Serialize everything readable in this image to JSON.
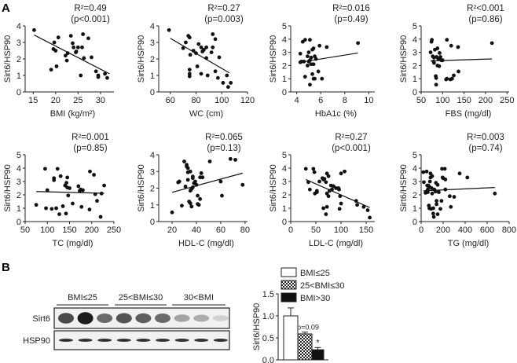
{
  "panel_labels": {
    "a": "A",
    "b": "B"
  },
  "chart_data": [
    {
      "type": "scatter",
      "title": "",
      "xlabel": "BMI (kg/m²)",
      "ylabel": "Sirt6/HSP90",
      "r2": "R²=0.49",
      "p": "(p<0.001)",
      "xlim": [
        13.2,
        33
      ],
      "ylim": [
        0,
        4
      ],
      "xticks": [
        15,
        20,
        25,
        30
      ],
      "yticks": [
        0,
        1,
        2,
        3,
        4
      ],
      "fit": [
        [
          15.2,
          3.45
        ],
        [
          32,
          1.1
        ]
      ],
      "points": [
        [
          15.2,
          3.75
        ],
        [
          19,
          1.35
        ],
        [
          19.5,
          2.6
        ],
        [
          19.7,
          3.0
        ],
        [
          20,
          2.5
        ],
        [
          20.2,
          1.55
        ],
        [
          20.6,
          3.3
        ],
        [
          22.2,
          2.2
        ],
        [
          22.5,
          1.9
        ],
        [
          22.7,
          2.35
        ],
        [
          23.4,
          3.4
        ],
        [
          23.8,
          2.95
        ],
        [
          24,
          2.7
        ],
        [
          24.5,
          2.4
        ],
        [
          24.6,
          2.45
        ],
        [
          25,
          2.7
        ],
        [
          25.6,
          1.0
        ],
        [
          25.9,
          2.7
        ],
        [
          26.1,
          3.5
        ],
        [
          26.3,
          2.05
        ],
        [
          27.3,
          3.25
        ],
        [
          28,
          2.1
        ],
        [
          29,
          1.25
        ],
        [
          29.5,
          1.0
        ],
        [
          29.5,
          0.9
        ],
        [
          31,
          1.1
        ],
        [
          31.5,
          0.85
        ]
      ]
    },
    {
      "type": "scatter",
      "xlabel": "WC (cm)",
      "ylabel": "Sirt6/HSP90",
      "r2": "R²=0.27",
      "p": "(p=0.003)",
      "xlim": [
        51,
        120
      ],
      "ylim": [
        0,
        4
      ],
      "xticks": [
        60,
        80,
        100,
        120
      ],
      "yticks": [
        0,
        1,
        2,
        3,
        4
      ],
      "fit": [
        [
          60,
          3.25
        ],
        [
          106,
          1.15
        ]
      ],
      "points": [
        [
          59,
          3.75
        ],
        [
          70,
          2.65
        ],
        [
          72,
          3.0
        ],
        [
          74,
          3.4
        ],
        [
          75,
          3.3
        ],
        [
          75,
          1.35
        ],
        [
          75,
          1.1
        ],
        [
          75,
          0.95
        ],
        [
          75.5,
          2.25
        ],
        [
          78,
          2.5
        ],
        [
          80,
          2.35
        ],
        [
          81,
          1.55
        ],
        [
          82,
          2.9
        ],
        [
          84,
          2.7
        ],
        [
          84,
          1.1
        ],
        [
          85,
          2.45
        ],
        [
          86,
          2.55
        ],
        [
          88,
          2.7
        ],
        [
          88,
          2.05
        ],
        [
          89,
          1.0
        ],
        [
          92,
          2.4
        ],
        [
          93,
          3.5
        ],
        [
          93,
          2.7
        ],
        [
          95,
          3.2
        ],
        [
          95,
          1.25
        ],
        [
          97,
          0.85
        ],
        [
          98,
          2.1
        ],
        [
          101,
          0.55
        ],
        [
          104,
          1.0
        ],
        [
          105,
          0.3
        ],
        [
          107,
          0.55
        ]
      ]
    },
    {
      "type": "scatter",
      "xlabel": "HbA1c (%)",
      "ylabel": "Sirt6/HSP90",
      "r2": "R²=0.016",
      "p": "(p=0.49)",
      "xlim": [
        3.5,
        10.5
      ],
      "ylim": [
        0,
        5
      ],
      "xticks": [
        4,
        6,
        8,
        10
      ],
      "yticks": [
        0,
        1,
        2,
        3,
        4,
        5
      ],
      "fit": [
        [
          4.3,
          2.25
        ],
        [
          9.1,
          2.95
        ]
      ],
      "points": [
        [
          4.3,
          2.9
        ],
        [
          4.3,
          2.25
        ],
        [
          4.4,
          2.3
        ],
        [
          4.5,
          3.8
        ],
        [
          4.6,
          2.3
        ],
        [
          4.7,
          3.95
        ],
        [
          4.7,
          1.15
        ],
        [
          4.9,
          2.7
        ],
        [
          4.9,
          2.0
        ],
        [
          5,
          3.0
        ],
        [
          5,
          2.3
        ],
        [
          5.1,
          3.95
        ],
        [
          5.1,
          2.4
        ],
        [
          5.1,
          0.55
        ],
        [
          5.2,
          2.6
        ],
        [
          5.2,
          2.1
        ],
        [
          5.3,
          3.2
        ],
        [
          5.3,
          1.35
        ],
        [
          5.4,
          3.3
        ],
        [
          5.4,
          2.1
        ],
        [
          5.4,
          1.0
        ],
        [
          5.5,
          2.7
        ],
        [
          5.5,
          1.0
        ],
        [
          5.6,
          2.5
        ],
        [
          5.8,
          1.55
        ],
        [
          5.9,
          3.5
        ],
        [
          6.1,
          1.0
        ],
        [
          6.5,
          3.4
        ],
        [
          9.1,
          3.7
        ]
      ]
    },
    {
      "type": "scatter",
      "xlabel": "FBS (mg/dl)",
      "ylabel": "Sirt6/HSP90",
      "r2": "R²<0.001",
      "p": "(p=0.86)",
      "xlim": [
        50,
        255
      ],
      "ylim": [
        0,
        5
      ],
      "xticks": [
        50,
        100,
        150,
        200,
        250
      ],
      "yticks": [
        0,
        1,
        2,
        3,
        4,
        5
      ],
      "fit": [
        [
          72,
          2.35
        ],
        [
          215,
          2.5
        ]
      ],
      "points": [
        [
          72,
          3.0
        ],
        [
          74,
          3.8
        ],
        [
          75,
          3.95
        ],
        [
          77,
          2.7
        ],
        [
          79,
          2.3
        ],
        [
          80,
          2.6
        ],
        [
          80,
          2.2
        ],
        [
          82,
          3.2
        ],
        [
          84,
          1.2
        ],
        [
          85,
          1.05
        ],
        [
          85,
          0.55
        ],
        [
          86,
          2.65
        ],
        [
          88,
          3.3
        ],
        [
          88,
          2.0
        ],
        [
          90,
          2.5
        ],
        [
          92,
          1.95
        ],
        [
          93,
          2.95
        ],
        [
          95,
          2.65
        ],
        [
          97,
          2.4
        ],
        [
          100,
          2.4
        ],
        [
          108,
          0.95
        ],
        [
          110,
          1.0
        ],
        [
          110,
          3.95
        ],
        [
          118,
          0.95
        ],
        [
          120,
          3.5
        ],
        [
          122,
          1.0
        ],
        [
          126,
          1.25
        ],
        [
          136,
          3.4
        ],
        [
          137,
          1.55
        ],
        [
          215,
          3.7
        ]
      ]
    },
    {
      "type": "scatter",
      "xlabel": "TC (mg/dl)",
      "ylabel": "Sirt6/HSP90",
      "r2": "R²=0.001",
      "p": "(p=0.85)",
      "xlim": [
        50,
        250
      ],
      "ylim": [
        0,
        5
      ],
      "xticks": [
        50,
        100,
        150,
        200,
        250
      ],
      "yticks": [
        0,
        1,
        2,
        3,
        4,
        5
      ],
      "fit": [
        [
          75,
          2.25
        ],
        [
          228,
          2.12
        ]
      ],
      "points": [
        [
          75,
          1.25
        ],
        [
          95,
          3.95
        ],
        [
          97,
          1.0
        ],
        [
          100,
          2.35
        ],
        [
          110,
          0.95
        ],
        [
          115,
          3.25
        ],
        [
          115,
          3.1
        ],
        [
          120,
          1.0
        ],
        [
          123,
          3.95
        ],
        [
          127,
          0.55
        ],
        [
          130,
          3.4
        ],
        [
          135,
          1.15
        ],
        [
          140,
          2.7
        ],
        [
          142,
          0.6
        ],
        [
          143,
          2.9
        ],
        [
          145,
          2.55
        ],
        [
          145,
          3.3
        ],
        [
          147,
          1.95
        ],
        [
          150,
          2.5
        ],
        [
          157,
          1.35
        ],
        [
          170,
          2.65
        ],
        [
          173,
          2.3
        ],
        [
          175,
          2.4
        ],
        [
          177,
          1.1
        ],
        [
          180,
          2.35
        ],
        [
          195,
          0.9
        ],
        [
          196,
          3.75
        ],
        [
          205,
          3.5
        ],
        [
          208,
          2.05
        ],
        [
          212,
          1.55
        ],
        [
          220,
          0.35
        ],
        [
          222,
          2.1
        ],
        [
          228,
          2.7
        ]
      ]
    },
    {
      "type": "scatter",
      "xlabel": "HDL-C (mg/dl)",
      "ylabel": "Sirt6/HSP90",
      "r2": "R²=0.065",
      "p": "(p=0.13)",
      "xlim": [
        9,
        82
      ],
      "ylim": [
        0,
        4
      ],
      "xticks": [
        20,
        40,
        60,
        80
      ],
      "yticks": [
        0,
        1,
        2,
        3,
        4
      ],
      "fit": [
        [
          20,
          1.75
        ],
        [
          78,
          2.9
        ]
      ],
      "points": [
        [
          20,
          0.55
        ],
        [
          25,
          2.35
        ],
        [
          26,
          2.4
        ],
        [
          28,
          0.95
        ],
        [
          30,
          3.6
        ],
        [
          31,
          2.1
        ],
        [
          32,
          3.4
        ],
        [
          32,
          3.3
        ],
        [
          33,
          2.5
        ],
        [
          33,
          2.95
        ],
        [
          33,
          3.2
        ],
        [
          34,
          1.2
        ],
        [
          35,
          1.85
        ],
        [
          35,
          3.0
        ],
        [
          35,
          1.1
        ],
        [
          36,
          0.9
        ],
        [
          36,
          1.95
        ],
        [
          37,
          2.6
        ],
        [
          37,
          2.05
        ],
        [
          37,
          2.7
        ],
        [
          38,
          2.3
        ],
        [
          39,
          2.4
        ],
        [
          40,
          2.2
        ],
        [
          41,
          1.05
        ],
        [
          41,
          1.55
        ],
        [
          42,
          1.0
        ],
        [
          43,
          1.35
        ],
        [
          43,
          2.65
        ],
        [
          44,
          2.9
        ],
        [
          45,
          2.65
        ],
        [
          51,
          3.6
        ],
        [
          60,
          2.4
        ],
        [
          61,
          1.55
        ],
        [
          68,
          3.75
        ],
        [
          72,
          3.7
        ],
        [
          78,
          2.2
        ]
      ]
    },
    {
      "type": "scatter",
      "xlabel": "LDL-C (mg/dl)",
      "ylabel": "Sirt6/HSP90",
      "r2": "R²=0.27",
      "p": "(p<0.001)",
      "xlim": [
        0,
        167
      ],
      "ylim": [
        0,
        5
      ],
      "xticks": [
        0,
        50,
        100,
        150
      ],
      "yticks": [
        0,
        1,
        2,
        3,
        4,
        5
      ],
      "fit": [
        [
          30,
          3.15
        ],
        [
          157,
          1.05
        ]
      ],
      "points": [
        [
          30,
          3.95
        ],
        [
          35,
          2.95
        ],
        [
          38,
          2.4
        ],
        [
          45,
          3.95
        ],
        [
          47,
          3.7
        ],
        [
          48,
          2.1
        ],
        [
          52,
          2.3
        ],
        [
          52,
          2.2
        ],
        [
          57,
          3.0
        ],
        [
          63,
          3.25
        ],
        [
          65,
          3.15
        ],
        [
          65,
          1.0
        ],
        [
          67,
          3.2
        ],
        [
          70,
          2.95
        ],
        [
          70,
          0.55
        ],
        [
          72,
          3.6
        ],
        [
          72,
          1.1
        ],
        [
          72,
          2.1
        ],
        [
          75,
          3.4
        ],
        [
          75,
          1.9
        ],
        [
          77,
          2.3
        ],
        [
          80,
          2.7
        ],
        [
          82,
          2.4
        ],
        [
          85,
          2.65
        ],
        [
          90,
          2.5
        ],
        [
          95,
          2.5
        ],
        [
          96,
          2.4
        ],
        [
          97,
          0.95
        ],
        [
          98,
          1.9
        ],
        [
          100,
          3.6
        ],
        [
          100,
          1.35
        ],
        [
          107,
          3.75
        ],
        [
          130,
          1.55
        ],
        [
          132,
          1.25
        ],
        [
          145,
          1.1
        ],
        [
          153,
          0.85
        ],
        [
          157,
          0.3
        ]
      ]
    },
    {
      "type": "scatter",
      "xlabel": "TG (mg/dl)",
      "ylabel": "Sirt6/HSP90",
      "r2": "R²=0.003",
      "p": "(p=0.74)",
      "xlim": [
        0,
        800
      ],
      "ylim": [
        0,
        5
      ],
      "xticks": [
        0,
        200,
        400,
        600,
        800
      ],
      "yticks": [
        0,
        1,
        2,
        3,
        4,
        5
      ],
      "fit": [
        [
          20,
          2.3
        ],
        [
          670,
          2.55
        ]
      ],
      "points": [
        [
          20,
          3.7
        ],
        [
          25,
          2.95
        ],
        [
          40,
          2.15
        ],
        [
          50,
          3.75
        ],
        [
          55,
          2.7
        ],
        [
          55,
          2.3
        ],
        [
          60,
          2.4
        ],
        [
          60,
          2.2
        ],
        [
          65,
          2.7
        ],
        [
          70,
          1.2
        ],
        [
          75,
          1.0
        ],
        [
          75,
          2.6
        ],
        [
          80,
          3.0
        ],
        [
          85,
          3.6
        ],
        [
          85,
          3.3
        ],
        [
          90,
          0.95
        ],
        [
          95,
          2.5
        ],
        [
          100,
          3.4
        ],
        [
          100,
          2.1
        ],
        [
          110,
          0.6
        ],
        [
          110,
          1.0
        ],
        [
          115,
          0.35
        ],
        [
          120,
          2.4
        ],
        [
          130,
          2.25
        ],
        [
          135,
          2.9
        ],
        [
          140,
          1.55
        ],
        [
          140,
          1.3
        ],
        [
          150,
          2.75
        ],
        [
          150,
          0.55
        ],
        [
          160,
          2.2
        ],
        [
          175,
          0.95
        ],
        [
          185,
          1.55
        ],
        [
          190,
          3.95
        ],
        [
          195,
          3.3
        ],
        [
          200,
          3.25
        ],
        [
          215,
          3.95
        ],
        [
          220,
          3.15
        ],
        [
          220,
          2.4
        ],
        [
          260,
          1.9
        ],
        [
          270,
          1.1
        ],
        [
          300,
          1.85
        ],
        [
          350,
          3.6
        ],
        [
          420,
          3.3
        ],
        [
          670,
          2.1
        ]
      ]
    },
    {
      "type": "bar",
      "ylabel": "Sirt6/HSP90",
      "ylim": [
        0,
        1.5
      ],
      "yticks": [
        "0.0",
        "0.5",
        "1.0",
        "1.5"
      ],
      "categories": [
        "BMI≤25",
        "25<BMI≤30",
        "BMI>30"
      ],
      "values": [
        1.0,
        0.59,
        0.23
      ],
      "errors": [
        0.18,
        0.04,
        0.05
      ],
      "fills": [
        "white",
        "checker",
        "black"
      ],
      "annotations": [
        "",
        "p=0.09",
        "*"
      ],
      "legend": "top"
    }
  ],
  "western_blot": {
    "groups": [
      "BMI≤25",
      "25<BMI≤30",
      "30<BMI"
    ],
    "rows": [
      {
        "label": "Sirt6",
        "intensities": [
          0.75,
          0.95,
          0.6,
          0.7,
          0.65,
          0.6,
          0.35,
          0.3,
          0.15
        ]
      },
      {
        "label": "HSP90",
        "intensities": [
          0.85,
          0.85,
          0.85,
          0.85,
          0.85,
          0.85,
          0.85,
          0.85,
          0.85
        ]
      }
    ]
  }
}
